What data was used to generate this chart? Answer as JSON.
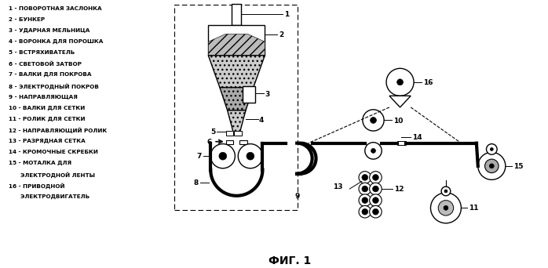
{
  "title": "ФИГ. 1",
  "bg_color": "#ffffff",
  "legend": [
    "1 - ПОВОРОТНАЯ ЗАСЛОНКА",
    "2 - БУНКЕР",
    "3 - УДАРНАЯ МЕЛЬНИЦА",
    "4 - ВОРОНКА ДЛЯ ПОРОШКА",
    "5 - ВСТРЯХИВАТЕЛЬ",
    "6 - СВЕТОВОЙ ЗАТВОР",
    "7 - ВАЛКИ ДЛЯ ПОКРОВА",
    "8 - ЭЛЕКТРОДНЫЙ ПОКРОВ",
    "9 - НАПРАВЛЯЮЩАЯ",
    "10 - ВАЛКИ ДЛЯ СЕТКИ",
    "11 - РОЛИК ДЛЯ СЕТКИ",
    "12 - НАПРАВЛЯЮЩИЙ РОЛИК",
    "13 - РАЗРЯДНАЯ СЕТКА",
    "14 - КРОМОЧНЫЕ СКРЕБКИ",
    "15 - МОТАЛКА ДЛЯ",
    "      ЭЛЕКТРОДНОЙ ЛЕНТЫ",
    "16 - ПРИВОДНОЙ",
    "      ЭЛЕКТРОДВИГАТЕЛЬ"
  ],
  "colors": {
    "black": "#000000",
    "white": "#ffffff",
    "gray_light": "#cccccc",
    "gray_mid": "#888888",
    "gray_dark": "#444444"
  }
}
